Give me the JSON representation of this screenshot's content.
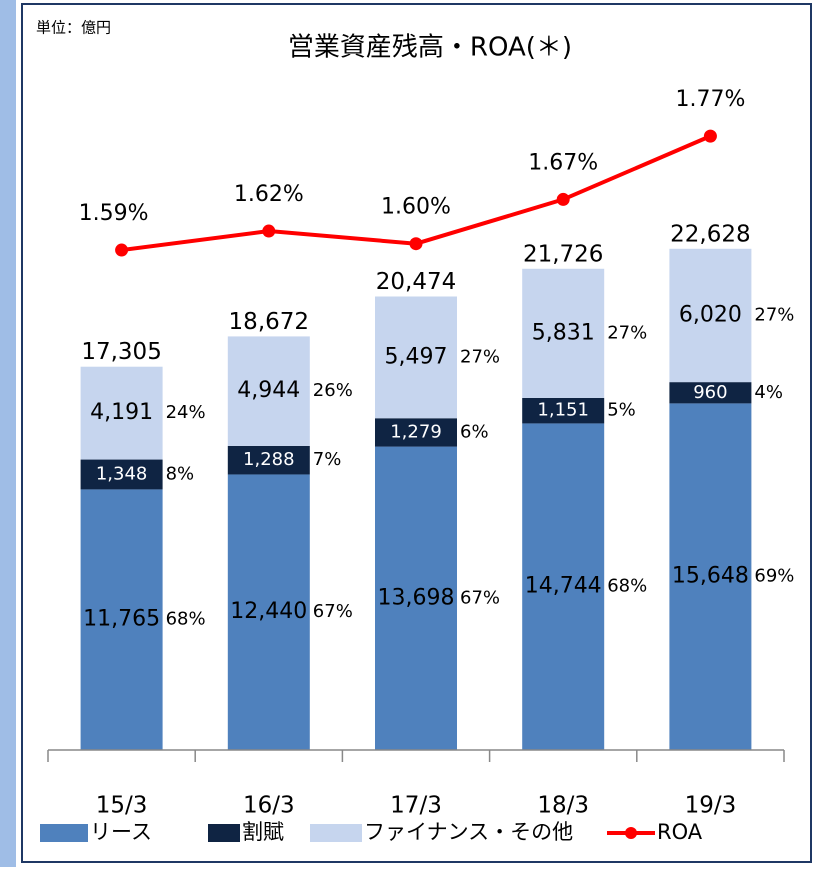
{
  "chart_data": {
    "type": "bar",
    "title": "営業資産残高・ROA(＊)",
    "unit_note": "単位：億円",
    "categories": [
      "15/3",
      "16/3",
      "17/3",
      "18/3",
      "19/3"
    ],
    "stacked": true,
    "ylim": [
      0,
      30000
    ],
    "y2lim": [
      0.8,
      1.85
    ],
    "series": [
      {
        "name": "リース",
        "color": "#4f81bd",
        "text_color": "#000000",
        "values": [
          11765,
          12440,
          13698,
          14744,
          15648
        ],
        "value_labels": [
          "11,765",
          "12,440",
          "13,698",
          "14,744",
          "15,648"
        ],
        "share_labels": [
          "68%",
          "67%",
          "67%",
          "68%",
          "69%"
        ]
      },
      {
        "name": "割賦",
        "color": "#0f2443",
        "text_color": "#ffffff",
        "values": [
          1348,
          1288,
          1279,
          1151,
          960
        ],
        "value_labels": [
          "1,348",
          "1,288",
          "1,279",
          "1,151",
          "960"
        ],
        "share_labels": [
          "8%",
          "7%",
          "6%",
          "5%",
          "4%"
        ]
      },
      {
        "name": "ファイナンス・その他",
        "color": "#c6d5ee",
        "text_color": "#000000",
        "values": [
          4191,
          4944,
          5497,
          5831,
          6020
        ],
        "value_labels": [
          "4,191",
          "4,944",
          "5,497",
          "5,831",
          "6,020"
        ],
        "share_labels": [
          "24%",
          "26%",
          "27%",
          "27%",
          "27%"
        ]
      },
      {
        "name": "ROA",
        "type": "line",
        "axis": "y2",
        "color": "#ff0000",
        "values": [
          1.59,
          1.62,
          1.6,
          1.67,
          1.77
        ],
        "value_labels": [
          "1.59%",
          "1.62%",
          "1.60%",
          "1.67%",
          "1.77%"
        ]
      }
    ],
    "totals": [
      17305,
      18672,
      20474,
      21726,
      22628
    ],
    "total_labels": [
      "17,305",
      "18,672",
      "20,474",
      "21,726",
      "22,628"
    ]
  }
}
